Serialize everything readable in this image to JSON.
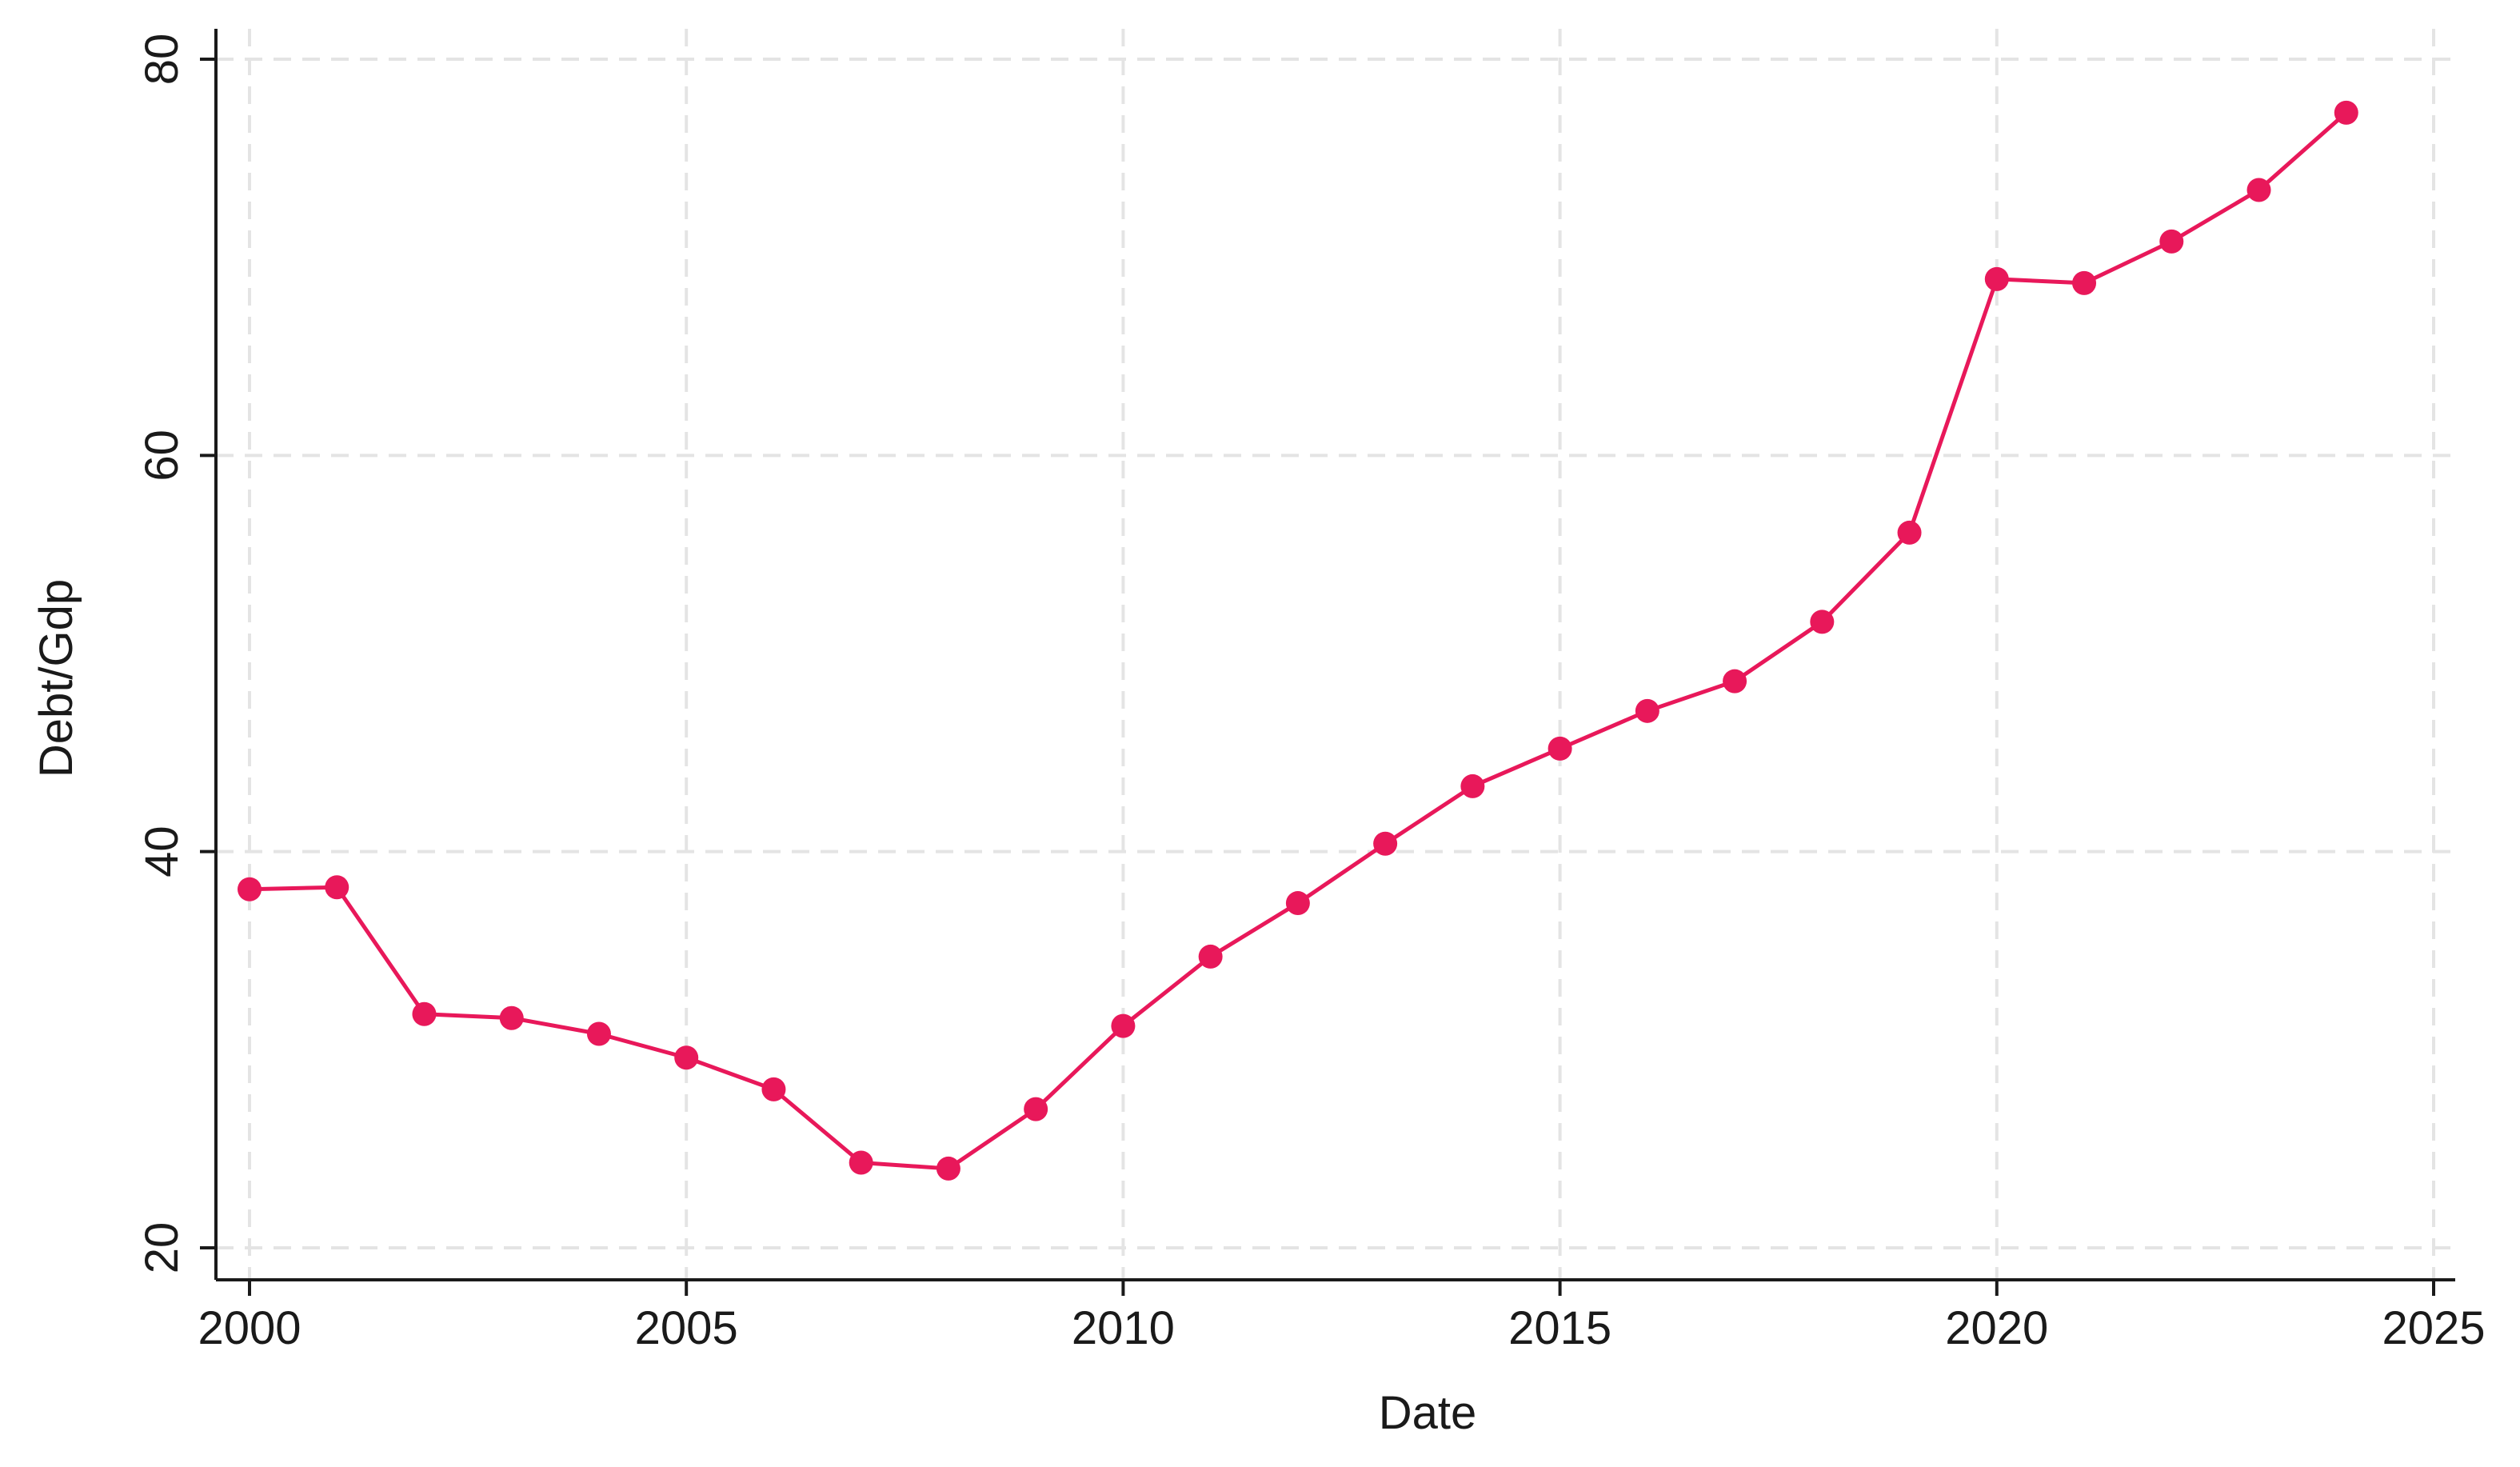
{
  "chart_data": {
    "type": "line",
    "title": "",
    "xlabel": "Date",
    "ylabel": "Debt/Gdp",
    "xlim": [
      2000,
      2025
    ],
    "ylim": [
      20,
      80
    ],
    "xticks": [
      2000,
      2005,
      2010,
      2015,
      2020,
      2025
    ],
    "yticks": [
      20,
      40,
      60,
      80
    ],
    "xtick_labels": [
      "2000",
      "2005",
      "2010",
      "2015",
      "2020",
      "2025"
    ],
    "ytick_labels": [
      "20",
      "40",
      "60",
      "80"
    ],
    "grid": true,
    "legend": "none",
    "series": [
      {
        "color": "#e8185a",
        "marker": "circle",
        "x": [
          2000,
          2001,
          2002,
          2003,
          2004,
          2005,
          2006,
          2007,
          2008,
          2009,
          2010,
          2011,
          2012,
          2013,
          2014,
          2015,
          2016,
          2017,
          2018,
          2019,
          2020,
          2021,
          2022,
          2023,
          2024
        ],
        "y": [
          38.1,
          38.2,
          31.8,
          31.6,
          30.8,
          29.6,
          28.0,
          24.3,
          24.0,
          27.0,
          31.2,
          34.7,
          37.4,
          40.4,
          43.3,
          45.2,
          47.1,
          48.6,
          51.6,
          56.1,
          68.9,
          68.7,
          70.8,
          73.4,
          77.3
        ]
      }
    ]
  }
}
